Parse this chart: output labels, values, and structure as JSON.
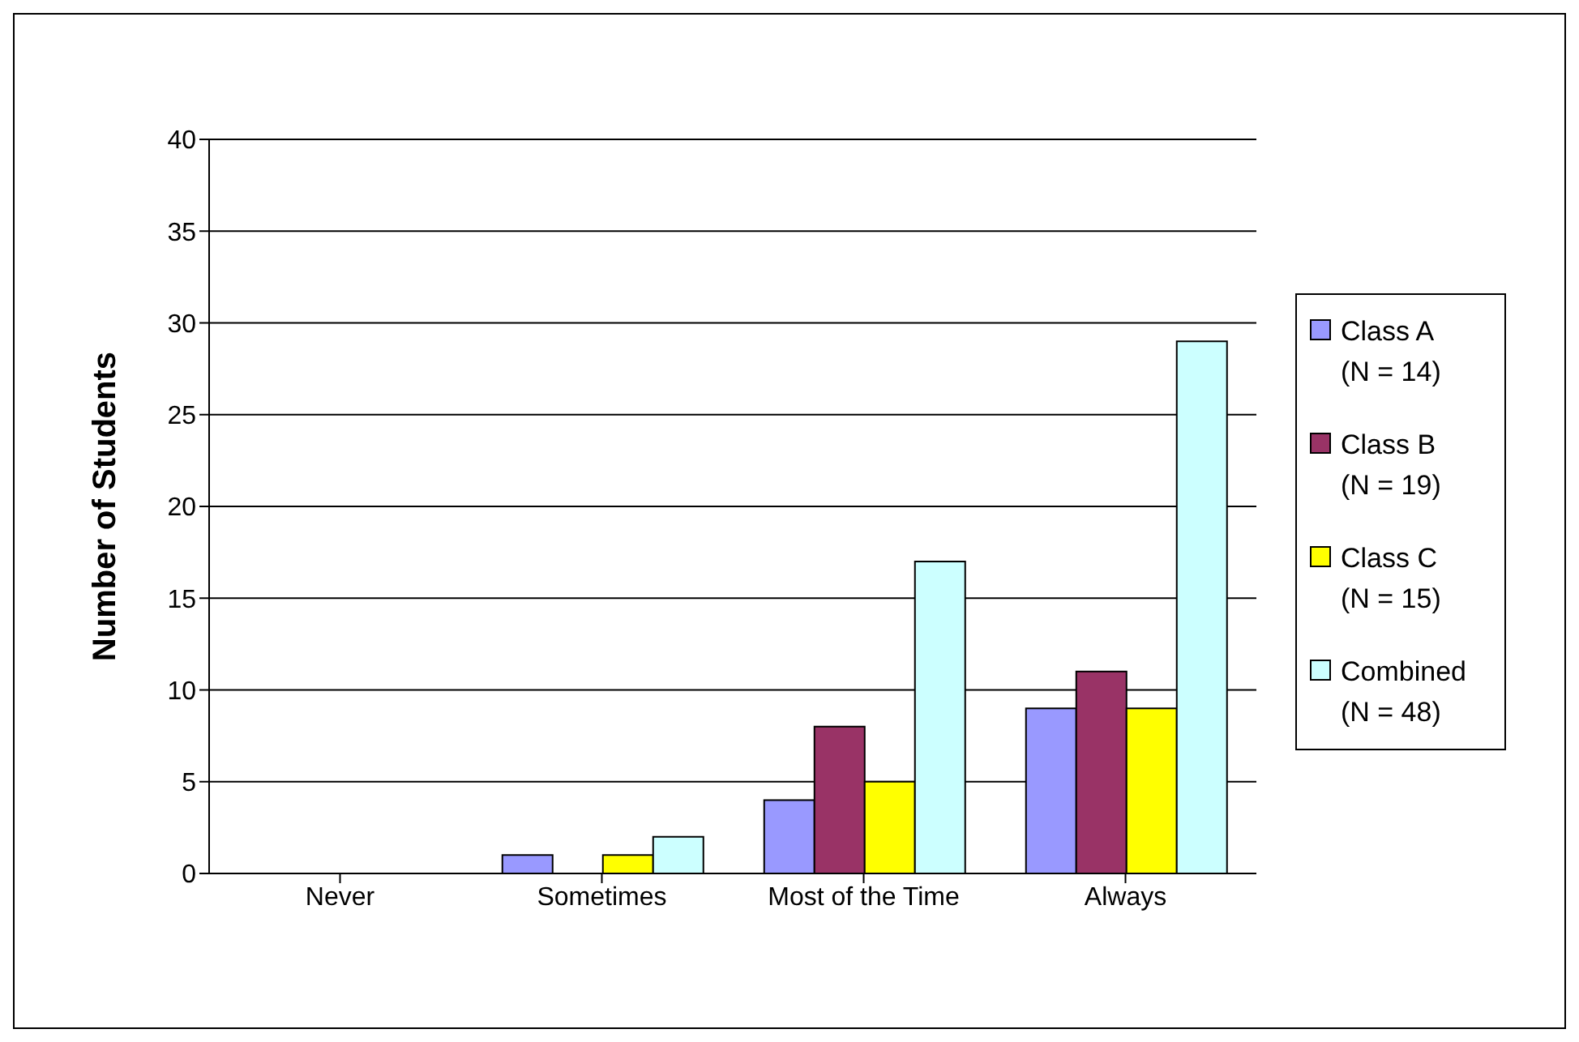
{
  "chart_data": {
    "type": "bar",
    "ylabel": "Number of Students",
    "categories": [
      "Never",
      "Sometimes",
      "Most of the Time",
      "Always"
    ],
    "series": [
      {
        "name": "Class A\n(N = 14)",
        "color": "#9999ff",
        "values": [
          0,
          1,
          4,
          9
        ]
      },
      {
        "name": "Class B\n(N = 19)",
        "color": "#993366",
        "values": [
          0,
          0,
          8,
          11
        ]
      },
      {
        "name": "Class C\n(N = 15)",
        "color": "#ffff00",
        "values": [
          0,
          1,
          5,
          9
        ]
      },
      {
        "name": "Combined\n(N = 48)",
        "color": "#ccffff",
        "values": [
          0,
          2,
          17,
          29
        ]
      }
    ],
    "ylim": [
      0,
      40
    ],
    "yticks": [
      0,
      5,
      10,
      15,
      20,
      25,
      30,
      35,
      40
    ],
    "grid": "y",
    "legend": "right"
  }
}
